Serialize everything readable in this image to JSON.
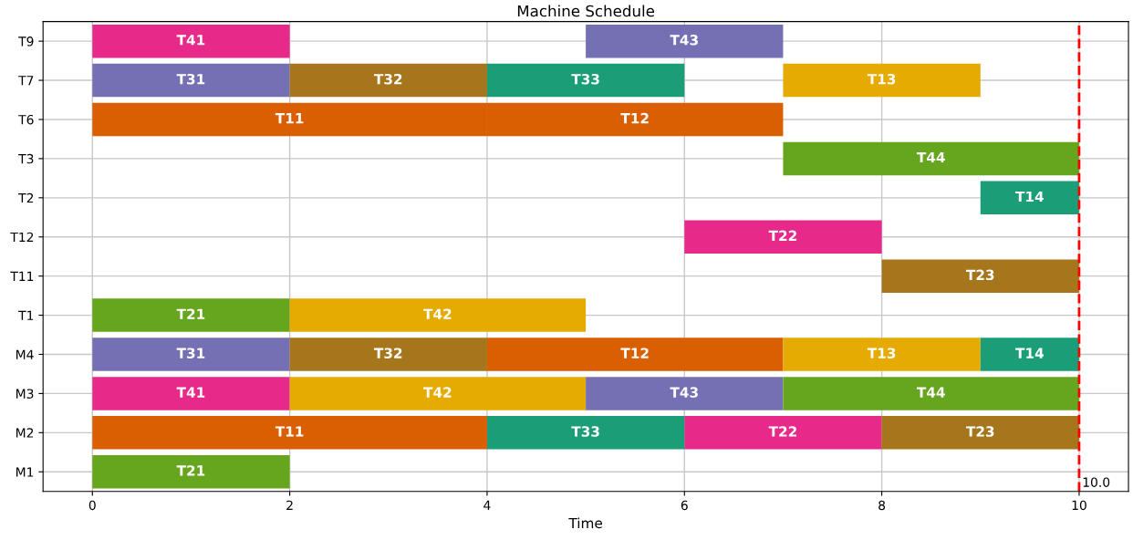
{
  "chart_data": {
    "type": "bar",
    "orientation": "horizontal",
    "title": "Machine Schedule",
    "xlabel": "Time",
    "categories": [
      "T9",
      "T7",
      "T6",
      "T3",
      "T2",
      "T12",
      "T11",
      "T1",
      "M4",
      "M3",
      "M2",
      "M1"
    ],
    "series": [
      {
        "name": "T11",
        "color": "#d95f02",
        "values": [
          null,
          null,
          4,
          null,
          null,
          null,
          null,
          null,
          null,
          null,
          4,
          null
        ],
        "base": [
          null,
          null,
          0,
          null,
          null,
          null,
          null,
          null,
          null,
          null,
          0,
          null
        ]
      },
      {
        "name": "T12",
        "color": "#d95f02",
        "values": [
          null,
          null,
          3,
          null,
          null,
          null,
          null,
          null,
          3,
          null,
          null,
          null
        ],
        "base": [
          null,
          null,
          4,
          null,
          null,
          null,
          null,
          null,
          4,
          null,
          null,
          null
        ]
      },
      {
        "name": "T13",
        "color": "#e6ab02",
        "values": [
          null,
          2,
          null,
          null,
          null,
          null,
          null,
          null,
          2,
          null,
          null,
          null
        ],
        "base": [
          null,
          7,
          null,
          null,
          null,
          null,
          null,
          null,
          7,
          null,
          null,
          null
        ]
      },
      {
        "name": "T14",
        "color": "#1b9e77",
        "values": [
          null,
          null,
          null,
          null,
          1,
          null,
          null,
          null,
          1,
          null,
          null,
          null
        ],
        "base": [
          null,
          null,
          null,
          null,
          9,
          null,
          null,
          null,
          9,
          null,
          null,
          null
        ]
      },
      {
        "name": "T21",
        "color": "#66a61e",
        "values": [
          null,
          null,
          null,
          null,
          null,
          null,
          null,
          2,
          null,
          null,
          null,
          2
        ],
        "base": [
          null,
          null,
          null,
          null,
          null,
          null,
          null,
          0,
          null,
          null,
          null,
          0
        ]
      },
      {
        "name": "T22",
        "color": "#e7298a",
        "values": [
          null,
          null,
          null,
          null,
          null,
          2,
          null,
          null,
          null,
          null,
          2,
          null
        ],
        "base": [
          null,
          null,
          null,
          null,
          null,
          6,
          null,
          null,
          null,
          null,
          6,
          null
        ]
      },
      {
        "name": "T23",
        "color": "#a6761d",
        "values": [
          null,
          null,
          null,
          null,
          null,
          null,
          2,
          null,
          null,
          null,
          2,
          null
        ],
        "base": [
          null,
          null,
          null,
          null,
          null,
          null,
          8,
          null,
          null,
          null,
          8,
          null
        ]
      },
      {
        "name": "T31",
        "color": "#7570b3",
        "values": [
          null,
          2,
          null,
          null,
          null,
          null,
          null,
          null,
          2,
          null,
          null,
          null
        ],
        "base": [
          null,
          0,
          null,
          null,
          null,
          null,
          null,
          null,
          0,
          null,
          null,
          null
        ]
      },
      {
        "name": "T32",
        "color": "#a6761d",
        "values": [
          null,
          2,
          null,
          null,
          null,
          null,
          null,
          null,
          2,
          null,
          null,
          null
        ],
        "base": [
          null,
          2,
          null,
          null,
          null,
          null,
          null,
          null,
          2,
          null,
          null,
          null
        ]
      },
      {
        "name": "T33",
        "color": "#1b9e77",
        "values": [
          null,
          2,
          null,
          null,
          null,
          null,
          null,
          null,
          null,
          null,
          2,
          null
        ],
        "base": [
          null,
          4,
          null,
          null,
          null,
          null,
          null,
          null,
          null,
          null,
          4,
          null
        ]
      },
      {
        "name": "T41",
        "color": "#e7298a",
        "values": [
          2,
          null,
          null,
          null,
          null,
          null,
          null,
          null,
          null,
          2,
          null,
          null
        ],
        "base": [
          0,
          null,
          null,
          null,
          null,
          null,
          null,
          null,
          null,
          0,
          null,
          null
        ]
      },
      {
        "name": "T42",
        "color": "#e6ab02",
        "values": [
          null,
          null,
          null,
          null,
          null,
          null,
          null,
          3,
          null,
          3,
          null,
          null
        ],
        "base": [
          null,
          null,
          null,
          null,
          null,
          null,
          null,
          2,
          null,
          2,
          null,
          null
        ]
      },
      {
        "name": "T43",
        "color": "#7570b3",
        "values": [
          2,
          null,
          null,
          null,
          null,
          null,
          null,
          null,
          null,
          2,
          null,
          null
        ],
        "base": [
          5,
          null,
          null,
          null,
          null,
          null,
          null,
          null,
          null,
          5,
          null,
          null
        ]
      },
      {
        "name": "T44",
        "color": "#66a61e",
        "values": [
          null,
          null,
          null,
          3,
          null,
          null,
          null,
          null,
          null,
          3,
          null,
          null
        ],
        "base": [
          null,
          null,
          null,
          7,
          null,
          null,
          null,
          null,
          null,
          7,
          null,
          null
        ]
      }
    ],
    "xlim": [
      -0.5,
      10.5
    ],
    "xticks": [
      0,
      2,
      4,
      6,
      8,
      10
    ],
    "grid": true,
    "ref_lines": [
      {
        "axis": "x",
        "value": 10,
        "label": "10.0",
        "color": "#ff0000",
        "line_style": "dashed"
      }
    ]
  }
}
